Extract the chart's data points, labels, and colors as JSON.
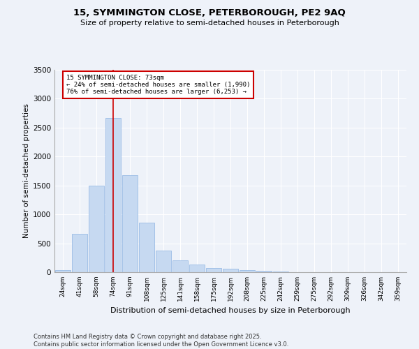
{
  "title_line1": "15, SYMMINGTON CLOSE, PETERBOROUGH, PE2 9AQ",
  "title_line2": "Size of property relative to semi-detached houses in Peterborough",
  "xlabel": "Distribution of semi-detached houses by size in Peterborough",
  "ylabel": "Number of semi-detached properties",
  "categories": [
    "24sqm",
    "41sqm",
    "58sqm",
    "74sqm",
    "91sqm",
    "108sqm",
    "125sqm",
    "141sqm",
    "158sqm",
    "175sqm",
    "192sqm",
    "208sqm",
    "225sqm",
    "242sqm",
    "259sqm",
    "275sqm",
    "292sqm",
    "309sqm",
    "326sqm",
    "342sqm",
    "359sqm"
  ],
  "values": [
    40,
    660,
    1500,
    2670,
    1680,
    860,
    370,
    200,
    130,
    70,
    55,
    35,
    20,
    10,
    3,
    2,
    1,
    0,
    0,
    0,
    0
  ],
  "bar_color": "#c6d9f1",
  "bar_edge_color": "#8db3e2",
  "property_index": 3,
  "property_label": "15 SYMMINGTON CLOSE: 73sqm",
  "smaller_pct": "24% of semi-detached houses are smaller (1,990)",
  "larger_pct": "76% of semi-detached houses are larger (6,253)",
  "red_line_color": "#cc0000",
  "annotation_box_color": "#cc0000",
  "ylim": [
    0,
    3500
  ],
  "yticks": [
    0,
    500,
    1000,
    1500,
    2000,
    2500,
    3000,
    3500
  ],
  "footer_line1": "Contains HM Land Registry data © Crown copyright and database right 2025.",
  "footer_line2": "Contains public sector information licensed under the Open Government Licence v3.0.",
  "background_color": "#eef2f9"
}
